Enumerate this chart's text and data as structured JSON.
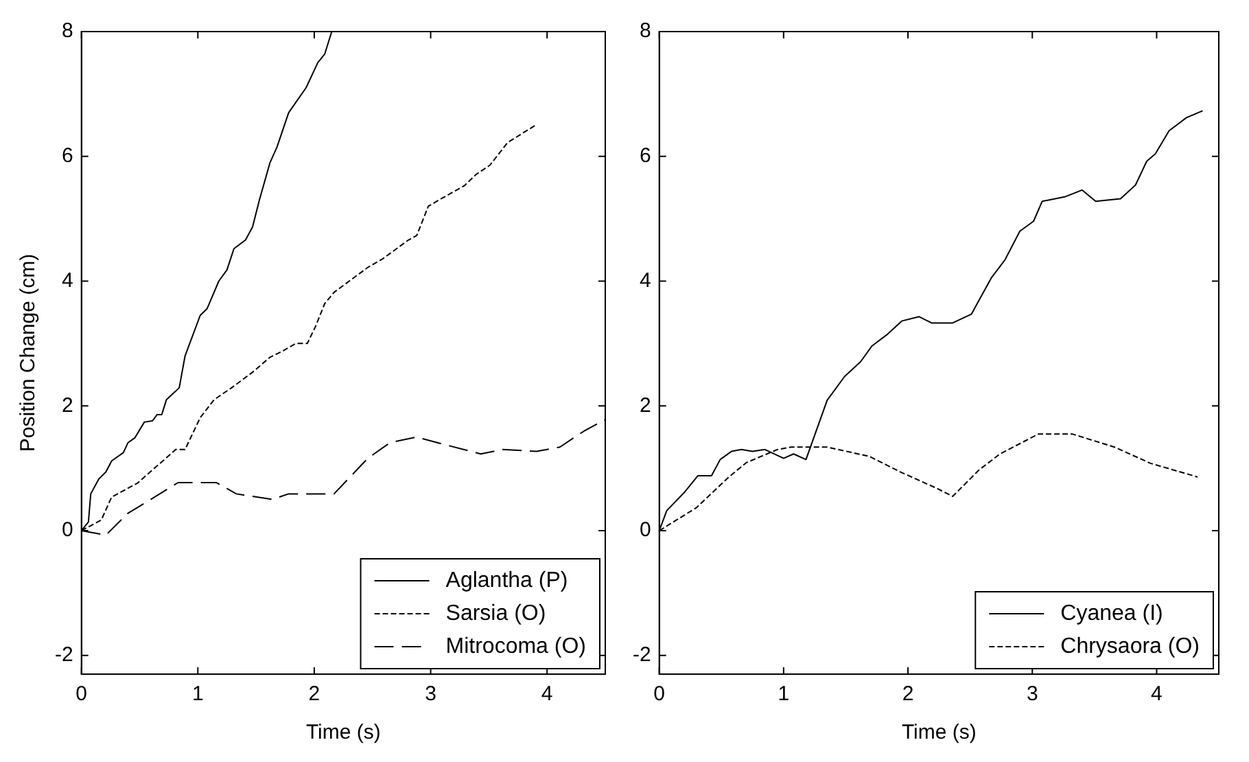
{
  "chart_data": [
    {
      "type": "line",
      "xlabel": "Time (s)",
      "ylabel": "Position Change (cm)",
      "xlim": [
        0,
        4.5
      ],
      "ylim": [
        -2.3,
        8
      ],
      "xticks": [
        0,
        1,
        2,
        3,
        4
      ],
      "yticks": [
        -2,
        0,
        2,
        4,
        6,
        8
      ],
      "legend": "bottom right",
      "series": [
        {
          "name": "Aglantha (P)",
          "color": "#000000",
          "line_style": "solid",
          "x": [
            0,
            0.06,
            0.08,
            0.15,
            0.21,
            0.26,
            0.36,
            0.4,
            0.46,
            0.54,
            0.61,
            0.65,
            0.69,
            0.73,
            0.84,
            0.89,
            1.02,
            1.08,
            1.18,
            1.25,
            1.31,
            1.41,
            1.47,
            1.53,
            1.62,
            1.68,
            1.78,
            1.93,
            2.03,
            2.09,
            2.15
          ],
          "values": [
            0,
            0.14,
            0.59,
            0.83,
            0.94,
            1.12,
            1.25,
            1.41,
            1.49,
            1.74,
            1.76,
            1.86,
            1.86,
            2.1,
            2.29,
            2.8,
            3.45,
            3.56,
            4.0,
            4.18,
            4.52,
            4.66,
            4.87,
            5.31,
            5.9,
            6.15,
            6.7,
            7.1,
            7.5,
            7.64,
            8.0
          ]
        },
        {
          "name": "Sarsia (O)",
          "color": "#000000",
          "line_style": "dashed",
          "x": [
            0,
            0.17,
            0.26,
            0.48,
            0.59,
            0.81,
            0.89,
            1.02,
            1.14,
            1.29,
            1.47,
            1.62,
            1.72,
            1.84,
            1.94,
            2.01,
            2.09,
            2.17,
            2.46,
            2.59,
            2.81,
            2.88,
            2.98,
            3.08,
            3.29,
            3.39,
            3.51,
            3.66,
            3.91
          ],
          "values": [
            0,
            0.17,
            0.54,
            0.76,
            0.94,
            1.3,
            1.3,
            1.81,
            2.1,
            2.29,
            2.54,
            2.78,
            2.87,
            3.0,
            3.0,
            3.27,
            3.64,
            3.82,
            4.22,
            4.36,
            4.66,
            4.73,
            5.2,
            5.31,
            5.53,
            5.71,
            5.86,
            6.22,
            6.51
          ]
        },
        {
          "name": "Mitrocoma (O)",
          "color": "#000000",
          "line_style": "dashed",
          "x": [
            0,
            0.21,
            0.4,
            0.63,
            0.83,
            1.16,
            1.33,
            1.64,
            1.78,
            2.09,
            2.17,
            2.46,
            2.65,
            2.88,
            3.16,
            3.43,
            3.62,
            3.91,
            4.11,
            4.32,
            4.5
          ],
          "values": [
            0,
            -0.07,
            0.28,
            0.54,
            0.77,
            0.77,
            0.59,
            0.5,
            0.59,
            0.59,
            0.59,
            1.16,
            1.41,
            1.5,
            1.36,
            1.23,
            1.3,
            1.27,
            1.34,
            1.6,
            1.78
          ]
        }
      ]
    },
    {
      "type": "line",
      "xlabel": "Time (s)",
      "xlim": [
        0,
        4.5
      ],
      "ylim": [
        -2.3,
        8
      ],
      "xticks": [
        0,
        1,
        2,
        3,
        4
      ],
      "yticks": [
        -2,
        0,
        2,
        4,
        6,
        8
      ],
      "legend": "bottom right",
      "series": [
        {
          "name": "Cyanea (I)",
          "color": "#000000",
          "line_style": "solid",
          "x": [
            0,
            0.06,
            0.2,
            0.31,
            0.42,
            0.49,
            0.58,
            0.66,
            0.75,
            0.85,
            1.0,
            1.08,
            1.18,
            1.35,
            1.49,
            1.62,
            1.71,
            1.83,
            1.95,
            2.09,
            2.19,
            2.36,
            2.51,
            2.67,
            2.78,
            2.9,
            3.01,
            3.08,
            3.26,
            3.4,
            3.51,
            3.71,
            3.83,
            3.92,
            3.99,
            4.1,
            4.24,
            4.37
          ],
          "values": [
            0,
            0.32,
            0.61,
            0.88,
            0.88,
            1.14,
            1.27,
            1.3,
            1.27,
            1.3,
            1.16,
            1.23,
            1.14,
            2.09,
            2.47,
            2.71,
            2.96,
            3.14,
            3.36,
            3.43,
            3.33,
            3.33,
            3.47,
            4.05,
            4.34,
            4.8,
            4.96,
            5.28,
            5.35,
            5.46,
            5.28,
            5.32,
            5.54,
            5.92,
            6.04,
            6.41,
            6.62,
            6.73
          ]
        },
        {
          "name": "Chrysaora (O)",
          "color": "#000000",
          "line_style": "dashed",
          "x": [
            0,
            0.3,
            0.56,
            0.7,
            0.95,
            1.06,
            1.35,
            1.69,
            1.94,
            2.23,
            2.36,
            2.57,
            2.74,
            3.05,
            3.32,
            3.66,
            3.95,
            4.33
          ],
          "values": [
            0,
            0.37,
            0.86,
            1.09,
            1.3,
            1.34,
            1.34,
            1.19,
            0.94,
            0.68,
            0.55,
            0.97,
            1.23,
            1.55,
            1.55,
            1.34,
            1.08,
            0.86
          ]
        }
      ]
    }
  ]
}
